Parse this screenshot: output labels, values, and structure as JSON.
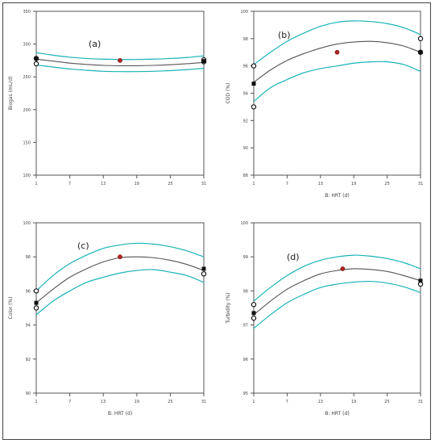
{
  "chart_data": [
    {
      "type": "line",
      "panel_label": "(a)",
      "xlabel": "",
      "ylabel": "Biogas (mL/d)",
      "xlim": [
        1,
        31
      ],
      "ylim": [
        100,
        350
      ],
      "xticks": [
        1,
        7,
        13,
        19,
        25,
        31
      ],
      "yticks": [
        100,
        150,
        200,
        250,
        300,
        350
      ],
      "series": [
        {
          "role": "fit",
          "x": [
            1,
            4,
            7,
            10,
            13,
            16,
            19,
            22,
            25,
            28,
            31
          ],
          "y": [
            277,
            274,
            271,
            269,
            267.5,
            267,
            267,
            267.5,
            268.5,
            270,
            272
          ]
        },
        {
          "role": "upper",
          "x": [
            1,
            4,
            7,
            10,
            13,
            16,
            19,
            22,
            25,
            28,
            31
          ],
          "y": [
            287,
            283,
            280,
            278,
            277,
            276.5,
            276.5,
            277,
            278,
            279.5,
            282
          ]
        },
        {
          "role": "lower",
          "x": [
            1,
            4,
            7,
            10,
            13,
            16,
            19,
            22,
            25,
            28,
            31
          ],
          "y": [
            268,
            265,
            262,
            260,
            258.5,
            258,
            258,
            258.5,
            259.5,
            261,
            263
          ]
        }
      ],
      "points": [
        {
          "x": 1,
          "y": 270,
          "style": "open"
        },
        {
          "x": 1,
          "y": 278,
          "style": "open"
        },
        {
          "x": 1,
          "y": 278,
          "style": "square"
        },
        {
          "x": 16,
          "y": 275,
          "style": "red"
        },
        {
          "x": 31,
          "y": 273,
          "style": "open"
        },
        {
          "x": 31,
          "y": 276,
          "style": "open"
        },
        {
          "x": 31,
          "y": 274,
          "style": "square"
        }
      ]
    },
    {
      "type": "line",
      "panel_label": "(b)",
      "xlabel": "B: HRT (d)",
      "ylabel": "COD (%)",
      "xlim": [
        1,
        31
      ],
      "ylim": [
        88,
        100
      ],
      "xticks": [
        1,
        7,
        13,
        19,
        25,
        31
      ],
      "yticks": [
        88,
        90,
        92,
        94,
        96,
        98,
        100
      ],
      "series": [
        {
          "role": "fit",
          "x": [
            1,
            4,
            7,
            10,
            13,
            16,
            19,
            22,
            25,
            28,
            31
          ],
          "y": [
            94.8,
            95.7,
            96.4,
            96.9,
            97.3,
            97.6,
            97.75,
            97.8,
            97.7,
            97.45,
            97.0
          ]
        },
        {
          "role": "upper",
          "x": [
            1,
            4,
            7,
            10,
            13,
            16,
            19,
            22,
            25,
            28,
            31
          ],
          "y": [
            96.1,
            97.0,
            97.8,
            98.4,
            98.9,
            99.2,
            99.3,
            99.25,
            99.1,
            98.8,
            98.3
          ]
        },
        {
          "role": "lower",
          "x": [
            1,
            4,
            7,
            10,
            13,
            16,
            19,
            22,
            25,
            28,
            31
          ],
          "y": [
            93.4,
            94.4,
            95.0,
            95.5,
            95.8,
            96.0,
            96.2,
            96.3,
            96.3,
            96.1,
            95.6
          ]
        }
      ],
      "points": [
        {
          "x": 1,
          "y": 93.0,
          "style": "open"
        },
        {
          "x": 1,
          "y": 96.0,
          "style": "open"
        },
        {
          "x": 1,
          "y": 94.7,
          "style": "square"
        },
        {
          "x": 16,
          "y": 97.0,
          "style": "red"
        },
        {
          "x": 31,
          "y": 98.0,
          "style": "open"
        },
        {
          "x": 31,
          "y": 97.0,
          "style": "open"
        },
        {
          "x": 31,
          "y": 97.0,
          "style": "square"
        }
      ]
    },
    {
      "type": "line",
      "panel_label": "(c)",
      "xlabel": "B: HRT (d)",
      "ylabel": "Color (%)",
      "xlim": [
        1,
        31
      ],
      "ylim": [
        90,
        100
      ],
      "xticks": [
        1,
        7,
        13,
        19,
        25,
        31
      ],
      "yticks": [
        90,
        92,
        94,
        96,
        98,
        100
      ],
      "series": [
        {
          "role": "fit",
          "x": [
            1,
            4,
            7,
            10,
            13,
            16,
            19,
            22,
            25,
            28,
            31
          ],
          "y": [
            95.3,
            96.1,
            96.8,
            97.3,
            97.7,
            97.95,
            98.0,
            97.95,
            97.8,
            97.55,
            97.2
          ]
        },
        {
          "role": "upper",
          "x": [
            1,
            4,
            7,
            10,
            13,
            16,
            19,
            22,
            25,
            28,
            31
          ],
          "y": [
            96.0,
            96.9,
            97.6,
            98.1,
            98.5,
            98.7,
            98.8,
            98.75,
            98.6,
            98.35,
            98.0
          ]
        },
        {
          "role": "lower",
          "x": [
            1,
            4,
            7,
            10,
            13,
            16,
            19,
            22,
            25,
            28,
            31
          ],
          "y": [
            94.6,
            95.4,
            96.0,
            96.5,
            96.8,
            97.05,
            97.2,
            97.25,
            97.1,
            96.9,
            96.5
          ]
        }
      ],
      "points": [
        {
          "x": 1,
          "y": 95.0,
          "style": "open"
        },
        {
          "x": 1,
          "y": 96.0,
          "style": "open"
        },
        {
          "x": 1,
          "y": 95.3,
          "style": "square"
        },
        {
          "x": 16,
          "y": 98.0,
          "style": "red"
        },
        {
          "x": 31,
          "y": 97.0,
          "style": "open"
        },
        {
          "x": 31,
          "y": 97.3,
          "style": "square"
        }
      ]
    },
    {
      "type": "line",
      "panel_label": "(d)",
      "xlabel": "B: HRT (d)",
      "ylabel": "Turbidity (%)",
      "xlim": [
        1,
        31
      ],
      "ylim": [
        95,
        100
      ],
      "xticks": [
        1,
        7,
        13,
        19,
        25,
        31
      ],
      "yticks": [
        95,
        96,
        97,
        98,
        99,
        100
      ],
      "series": [
        {
          "role": "fit",
          "x": [
            1,
            4,
            7,
            10,
            13,
            16,
            19,
            22,
            25,
            28,
            31
          ],
          "y": [
            97.3,
            97.7,
            98.05,
            98.3,
            98.5,
            98.6,
            98.65,
            98.63,
            98.57,
            98.45,
            98.3
          ]
        },
        {
          "role": "upper",
          "x": [
            1,
            4,
            7,
            10,
            13,
            16,
            19,
            22,
            25,
            28,
            31
          ],
          "y": [
            97.7,
            98.1,
            98.45,
            98.72,
            98.9,
            99.0,
            99.05,
            99.02,
            98.95,
            98.83,
            98.65
          ]
        },
        {
          "role": "lower",
          "x": [
            1,
            4,
            7,
            10,
            13,
            16,
            19,
            22,
            25,
            28,
            31
          ],
          "y": [
            96.9,
            97.3,
            97.65,
            97.9,
            98.1,
            98.2,
            98.26,
            98.28,
            98.23,
            98.12,
            97.95
          ]
        }
      ],
      "points": [
        {
          "x": 1,
          "y": 97.2,
          "style": "open"
        },
        {
          "x": 1,
          "y": 97.6,
          "style": "open"
        },
        {
          "x": 1,
          "y": 97.35,
          "style": "square"
        },
        {
          "x": 17,
          "y": 98.65,
          "style": "red"
        },
        {
          "x": 31,
          "y": 98.2,
          "style": "open"
        },
        {
          "x": 31,
          "y": 98.3,
          "style": "square"
        }
      ]
    }
  ],
  "colors": {
    "fit": "#555555",
    "band": "#19b3b8",
    "red_point": "#b22222",
    "axis": "#555555",
    "text": "#444444"
  }
}
